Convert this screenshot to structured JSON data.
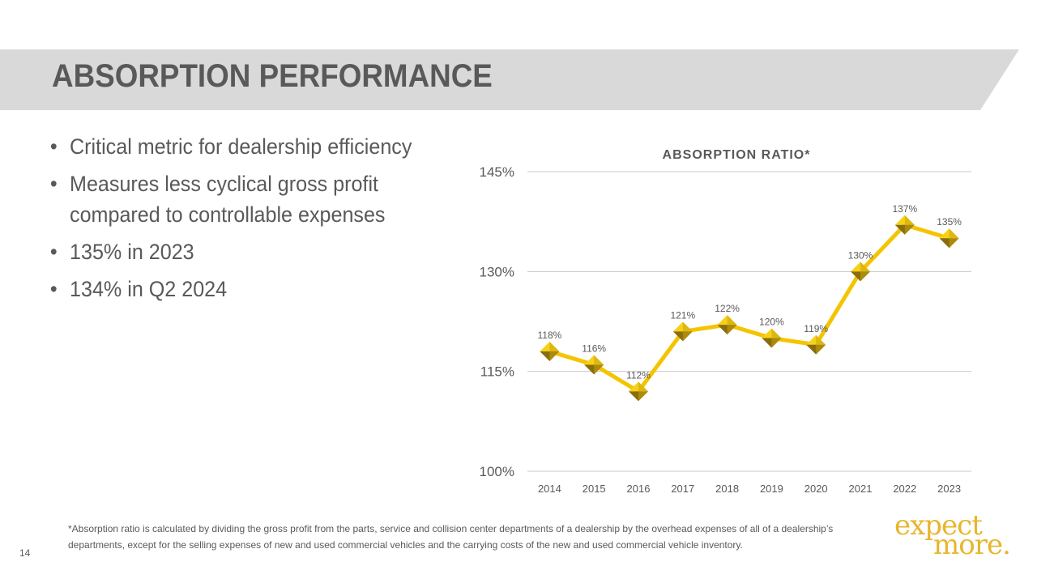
{
  "slide": {
    "title": "ABSORPTION PERFORMANCE",
    "bullets": [
      "Critical metric for dealership efficiency",
      "Measures less cyclical gross profit compared to controllable expenses",
      "135% in 2023",
      "134% in Q2 2024"
    ],
    "footnote": "*Absorption ratio is calculated by dividing the gross profit from the parts, service and collision center departments of a dealership by the overhead expenses of all of a dealership’s departments, except  for the selling expenses of new and used commercial vehicles and the carrying costs of the new and used commercial vehicle inventory.",
    "page_number": "14",
    "logo_line1": "expect",
    "logo_line2": "more."
  },
  "colors": {
    "title_band": "#d9d9d9",
    "text": "#595959",
    "line": "#f5c400",
    "marker_light": "#f7d117",
    "marker_dark": "#8a6d0b",
    "grid": "#c8c8c8",
    "logo": "#e8b52c"
  },
  "chart_data": {
    "type": "line",
    "title": "ABSORPTION RATIO*",
    "categories": [
      "2014",
      "2015",
      "2016",
      "2017",
      "2018",
      "2019",
      "2020",
      "2021",
      "2022",
      "2023"
    ],
    "values": [
      118,
      116,
      112,
      121,
      122,
      120,
      119,
      130,
      137,
      135
    ],
    "data_labels": [
      "118%",
      "116%",
      "112%",
      "121%",
      "122%",
      "120%",
      "119%",
      "130%",
      "137%",
      "135%"
    ],
    "ylim": [
      100,
      145
    ],
    "yticks": [
      100,
      115,
      130,
      145
    ],
    "ytick_labels": [
      "100%",
      "115%",
      "130%",
      "145%"
    ],
    "grid": true,
    "xlabel": "",
    "ylabel": ""
  }
}
